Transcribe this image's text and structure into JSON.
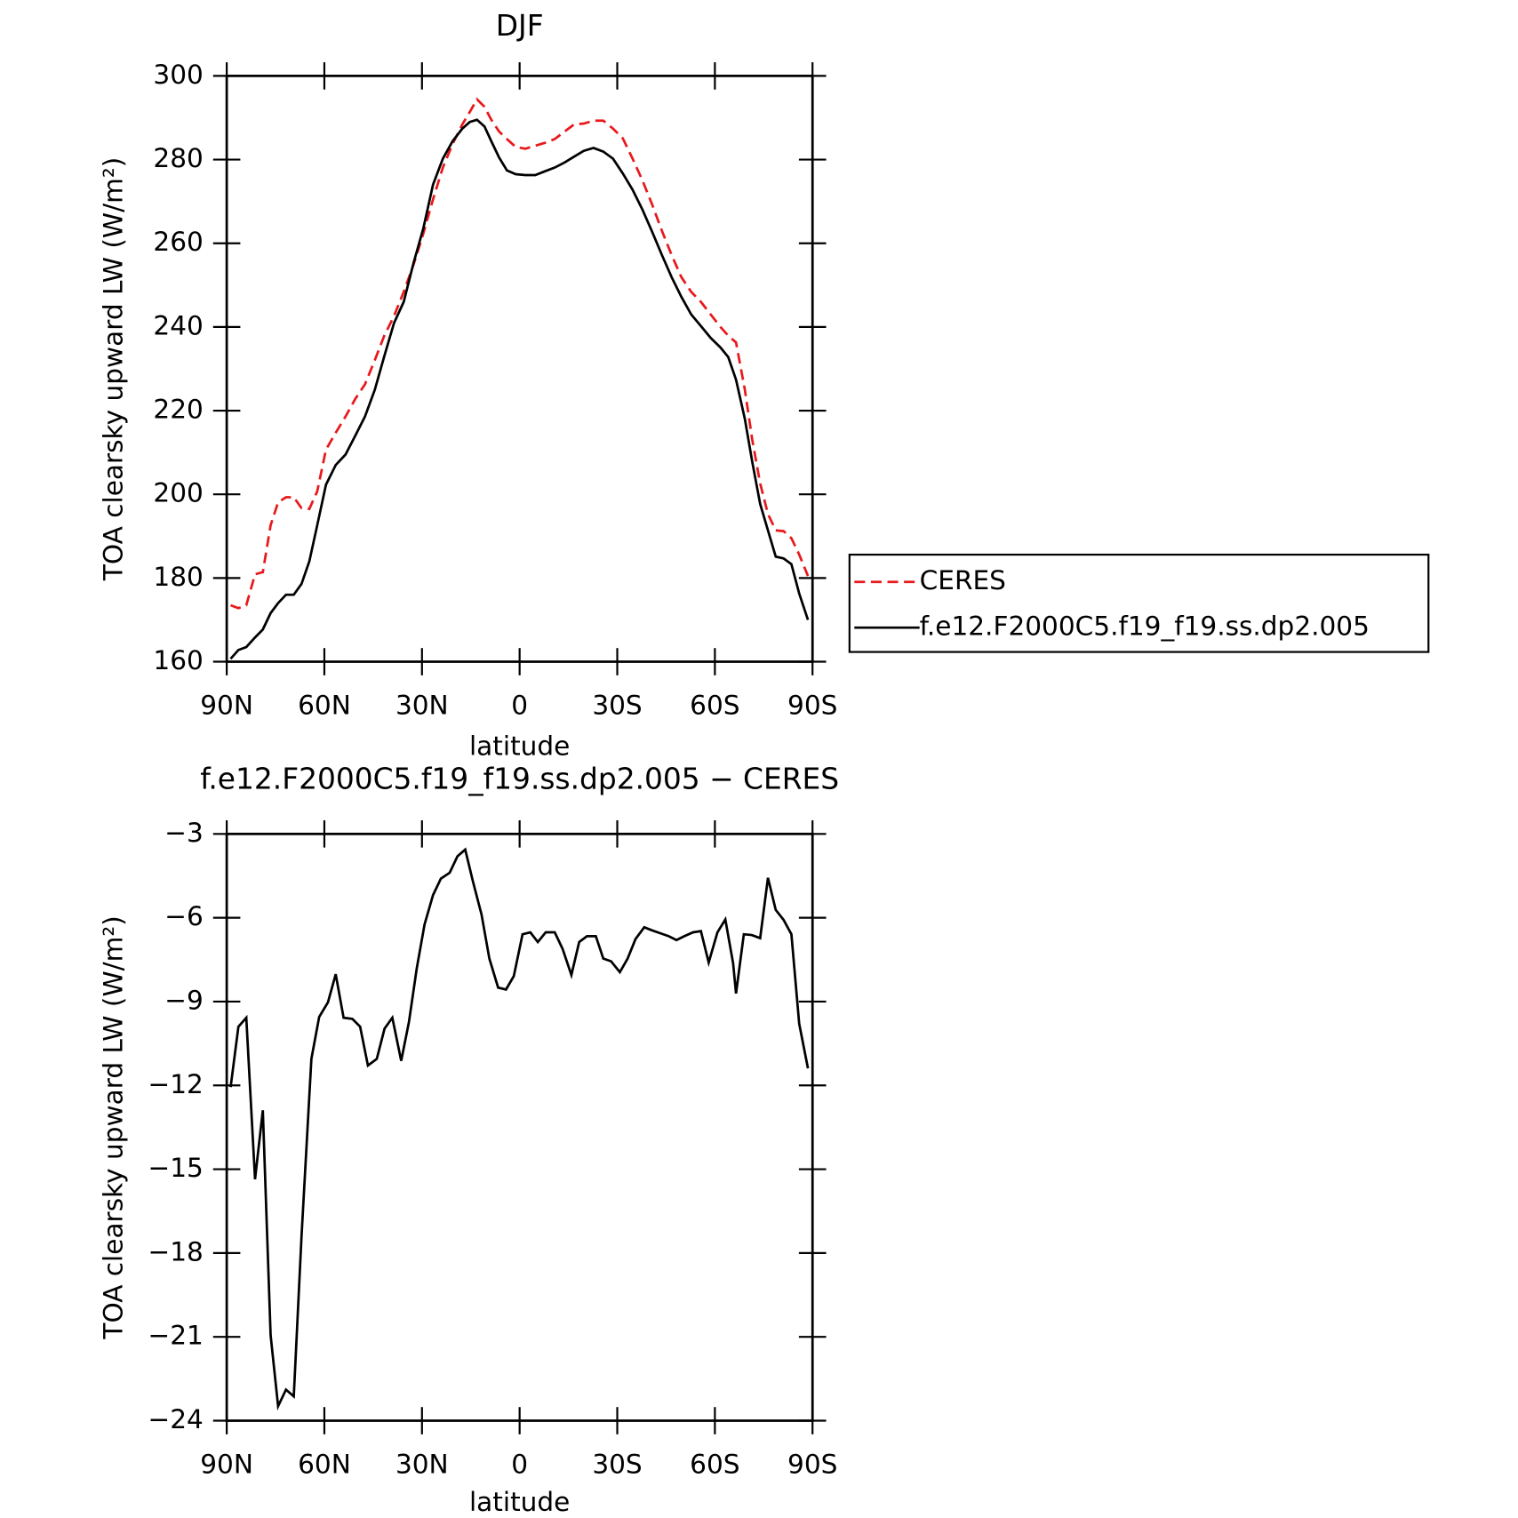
{
  "chart_data": [
    {
      "type": "line",
      "title": "DJF",
      "x_label": "latitude",
      "y_label": "TOA clearsky upward LW (W/m²)",
      "xlim": [
        90,
        -90
      ],
      "xticks": [
        {
          "value": 90,
          "label": "90N"
        },
        {
          "value": 60,
          "label": "60N"
        },
        {
          "value": 30,
          "label": "30N"
        },
        0,
        {
          "value": -30,
          "label": "30S"
        },
        {
          "value": -60,
          "label": "60S"
        },
        {
          "value": -90,
          "label": "90S"
        }
      ],
      "ylim": [
        160,
        300
      ],
      "yticks": [
        160,
        180,
        200,
        220,
        240,
        260,
        280,
        300
      ],
      "legend": "right",
      "x": [
        88.8,
        86.4,
        84,
        81.3,
        78.9,
        76.5,
        74.2,
        71.8,
        69.4,
        67,
        64.6,
        62.2,
        59.5,
        56.5,
        53.5,
        50.5,
        47.5,
        44.5,
        41.6,
        38.6,
        35.6,
        32.6,
        29.6,
        26.6,
        23.6,
        20.6,
        17.6,
        15.3,
        13.1,
        10.8,
        8.7,
        6.3,
        3.9,
        1.2,
        -1.8,
        -4.8,
        -7.8,
        -10.8,
        -13.8,
        -16.7,
        -19.7,
        -22.7,
        -25.7,
        -28.7,
        -31.7,
        -34.7,
        -37.7,
        -40.7,
        -43.7,
        -46.7,
        -49.7,
        -52.7,
        -55.7,
        -58.7,
        -61.7,
        -64.1,
        -66.5,
        -69.2,
        -71.5,
        -73.9,
        -76.3,
        -78.7,
        -81.1,
        -83.5,
        -85.9,
        -88.6
      ],
      "series": [
        {
          "name": "CERES",
          "color": "#e8191c",
          "style": "dashed",
          "values": [
            173.5,
            172.8,
            173.5,
            180.9,
            181.4,
            192.6,
            198.1,
            199.3,
            199.3,
            196.7,
            196.5,
            200.7,
            210.7,
            214.7,
            218.6,
            222.8,
            226.3,
            232.1,
            237.9,
            242.6,
            248.4,
            254.9,
            262.3,
            270.5,
            278.1,
            283.7,
            288.4,
            291.4,
            294.4,
            292.6,
            289.5,
            286.7,
            284.9,
            283,
            282.6,
            283.3,
            284,
            284.9,
            286.7,
            288.4,
            288.6,
            289.3,
            289.3,
            287.4,
            285.1,
            280.2,
            275.1,
            269.3,
            263,
            257.2,
            251.9,
            248.4,
            246,
            243,
            240,
            237.9,
            236.3,
            225.1,
            213,
            202.6,
            195.3,
            191.4,
            191.2,
            189.5,
            185.6,
            180.5
          ]
        },
        {
          "name": "f.e12.F2000C5.f19_f19.ss.dp2.005",
          "color": "#000000",
          "style": "solid",
          "values": [
            160.7,
            162.8,
            163.5,
            165.8,
            167.7,
            171.6,
            174,
            176,
            176,
            178.6,
            184,
            192.6,
            202.3,
            207,
            209.5,
            214,
            218.6,
            225,
            233,
            240.9,
            246,
            255.3,
            263.5,
            274,
            280.2,
            284.4,
            287.4,
            289,
            289.5,
            287.9,
            284.4,
            280.5,
            277.4,
            276.5,
            276.3,
            276.3,
            277.2,
            278.1,
            279.3,
            280.7,
            282.1,
            282.8,
            281.9,
            280.2,
            276.7,
            272.8,
            268.1,
            262.8,
            257.2,
            251.9,
            247.2,
            243,
            240.2,
            237.4,
            235.1,
            232.8,
            227.4,
            218.1,
            207.7,
            197.7,
            191.4,
            185.1,
            184.7,
            183.3,
            176.3,
            170
          ]
        }
      ]
    },
    {
      "type": "line",
      "title": "f.e12.F2000C5.f19_f19.ss.dp2.005 − CERES",
      "x_label": "latitude",
      "y_label": "TOA clearsky upward LW (W/m²)",
      "xlim": [
        90,
        -90
      ],
      "xticks": [
        {
          "value": 90,
          "label": "90N"
        },
        {
          "value": 60,
          "label": "60N"
        },
        {
          "value": 30,
          "label": "30N"
        },
        0,
        {
          "value": -30,
          "label": "30S"
        },
        {
          "value": -60,
          "label": "60S"
        },
        {
          "value": -90,
          "label": "90S"
        }
      ],
      "ylim": [
        -24,
        -3
      ],
      "yticks": [
        {
          "value": -24,
          "label": "−24"
        },
        {
          "value": -21,
          "label": "−21"
        },
        {
          "value": -18,
          "label": "−18"
        },
        {
          "value": -15,
          "label": "−15"
        },
        {
          "value": -12,
          "label": "−12"
        },
        {
          "value": -9,
          "label": "−9"
        },
        {
          "value": -6,
          "label": "−6"
        },
        {
          "value": -3,
          "label": "−3"
        }
      ],
      "x": [
        88.8,
        86.4,
        84,
        81.3,
        78.9,
        76.5,
        74.2,
        71.8,
        69.4,
        67,
        64,
        61.6,
        58.9,
        56.5,
        54.1,
        51.4,
        49,
        46.6,
        43.9,
        41.5,
        39.1,
        36.4,
        34,
        31.6,
        29.2,
        26.6,
        24.2,
        21.5,
        19.1,
        16.7,
        14.4,
        11.7,
        9.3,
        6.6,
        4.2,
        1.8,
        -0.9,
        -3.3,
        -5.6,
        -8,
        -10.8,
        -13.2,
        -15.9,
        -18.3,
        -20.7,
        -23.4,
        -25.7,
        -28.1,
        -30.8,
        -33.2,
        -35.6,
        -38.3,
        -40.7,
        -43.1,
        -45.8,
        -48.2,
        -50.6,
        -53.3,
        -55.7,
        -58.1,
        -60.8,
        -63.2,
        -65.6,
        -66.5,
        -68.9,
        -71.3,
        -73.9,
        -76.3,
        -78.7,
        -81.1,
        -83.5,
        -85.9,
        -88.6
      ],
      "series": [
        {
          "color": "#000000",
          "style": "solid",
          "values": [
            -12.06,
            -9.9,
            -9.58,
            -15.36,
            -12.89,
            -20.94,
            -23.48,
            -22.89,
            -23.13,
            -17.38,
            -11.05,
            -9.55,
            -9.03,
            -8.02,
            -9.58,
            -9.62,
            -9.9,
            -11.29,
            -11.05,
            -9.97,
            -9.58,
            -11.12,
            -9.72,
            -7.81,
            -6.24,
            -5.19,
            -4.6,
            -4.39,
            -3.8,
            -3.56,
            -4.67,
            -5.89,
            -7.46,
            -8.5,
            -8.57,
            -8.09,
            -6.59,
            -6.52,
            -6.87,
            -6.52,
            -6.52,
            -7.11,
            -8.05,
            -6.87,
            -6.66,
            -6.66,
            -7.46,
            -7.56,
            -7.95,
            -7.46,
            -6.76,
            -6.34,
            -6.45,
            -6.55,
            -6.66,
            -6.8,
            -6.66,
            -6.52,
            -6.48,
            -7.6,
            -6.52,
            -6.06,
            -7.63,
            -8.71,
            -6.59,
            -6.62,
            -6.73,
            -4.57,
            -5.72,
            -6.07,
            -6.59,
            -9.79,
            -11.39
          ]
        }
      ]
    }
  ]
}
